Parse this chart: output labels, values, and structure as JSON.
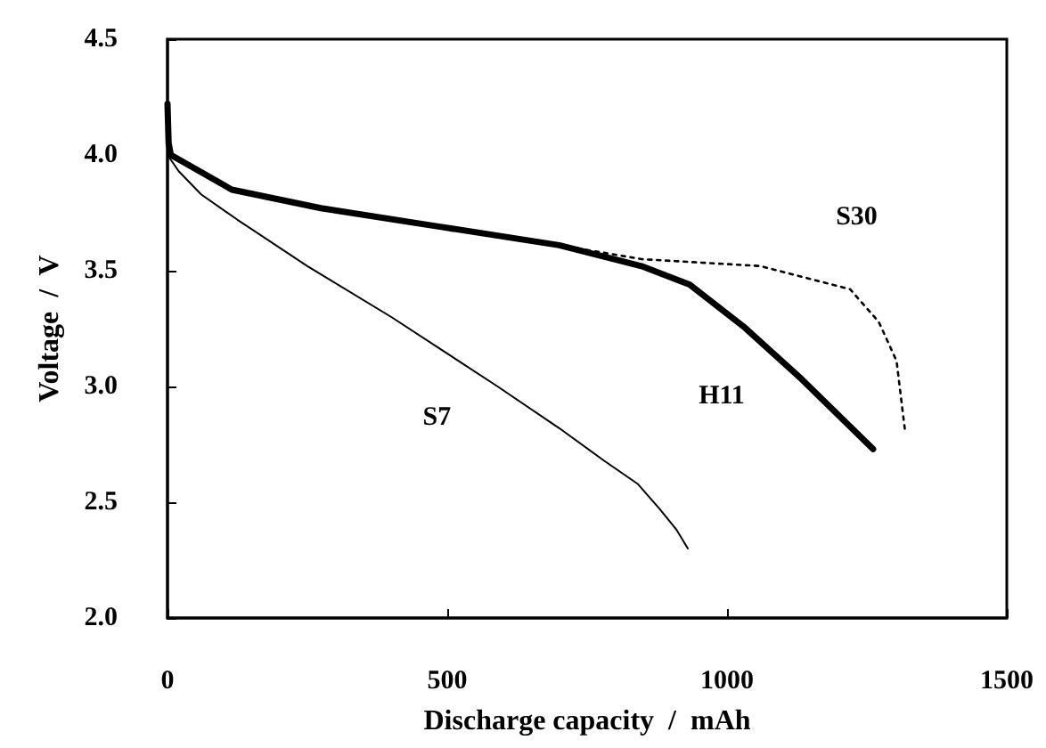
{
  "chart_data": {
    "type": "line",
    "xlabel": "Discharge capacity  /  mAh",
    "ylabel": "Voltage  /  V",
    "xlim": [
      0,
      1500
    ],
    "xticks": [
      0,
      500,
      1000,
      1500
    ],
    "ylim": [
      2.0,
      4.5
    ],
    "yticks": [
      {
        "value": 2.0,
        "label": "2.0"
      },
      {
        "value": 2.5,
        "label": "2.5"
      },
      {
        "value": 3.0,
        "label": "3.0"
      },
      {
        "value": 3.5,
        "label": "3.5"
      },
      {
        "value": 4.0,
        "label": "4.0"
      },
      {
        "value": 4.5,
        "label": "4.5"
      }
    ],
    "grid": false,
    "legend": false,
    "marker": "none",
    "series": [
      {
        "name": "S7",
        "color": "#000000",
        "line_style": "solid",
        "x": [
          0,
          0,
          20,
          60,
          125,
          250,
          400,
          590,
          700,
          780,
          840,
          880,
          910,
          930
        ],
        "values": [
          4.2,
          4.0,
          3.93,
          3.83,
          3.72,
          3.52,
          3.3,
          3.0,
          2.82,
          2.68,
          2.58,
          2.47,
          2.38,
          2.3
        ]
      },
      {
        "name": "H11",
        "color": "#000000",
        "line_style": "solid",
        "x": [
          0,
          2,
          6,
          115,
          274,
          487,
          700,
          847,
          933,
          1029,
          1134,
          1261
        ],
        "values": [
          4.22,
          4.05,
          4.0,
          3.85,
          3.77,
          3.69,
          3.61,
          3.52,
          3.44,
          3.26,
          3.03,
          2.73
        ]
      },
      {
        "name": "S30",
        "color": "#000000",
        "line_style": "dotted",
        "x": [
          0,
          2,
          6,
          115,
          274,
          487,
          700,
          847,
          1060,
          1220,
          1271,
          1303,
          1318
        ],
        "values": [
          4.22,
          4.05,
          4.0,
          3.85,
          3.77,
          3.69,
          3.61,
          3.55,
          3.52,
          3.42,
          3.28,
          3.11,
          2.81
        ]
      }
    ]
  }
}
